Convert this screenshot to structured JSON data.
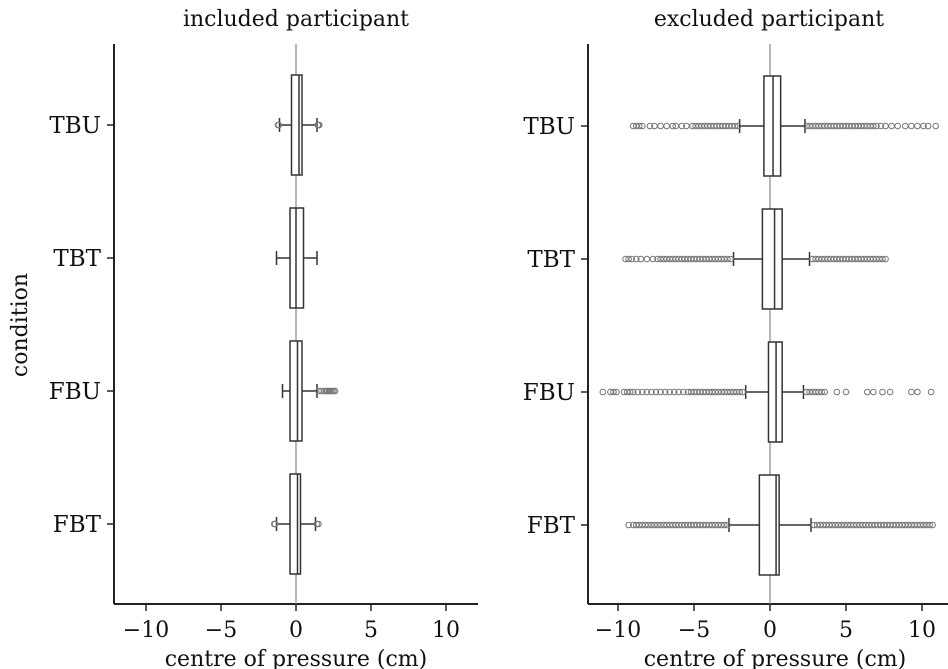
{
  "chart_data": [
    {
      "type": "box",
      "title": "included participant",
      "xlabel": "centre of pressure (cm)",
      "ylabel": "condition",
      "xlim": [
        -12.2,
        12.2
      ],
      "xticks": [
        -10,
        -5,
        0,
        5,
        10
      ],
      "xtick_labels": [
        "−10",
        "−5",
        "0",
        "5",
        "10"
      ],
      "categories": [
        "TBU",
        "TBT",
        "FBU",
        "FBT"
      ],
      "zero_line": true,
      "boxes": [
        {
          "category": "TBU",
          "whislo": -1.1,
          "q1": -0.3,
          "med": 0.2,
          "q3": 0.4,
          "whishi": 1.4,
          "fliers": [
            -1.2,
            -1.15,
            1.45,
            1.5,
            1.55
          ]
        },
        {
          "category": "TBT",
          "whislo": -1.3,
          "q1": -0.4,
          "med": 0.0,
          "q3": 0.5,
          "whishi": 1.4,
          "fliers": []
        },
        {
          "category": "FBU",
          "whislo": -0.9,
          "q1": -0.4,
          "med": 0.1,
          "q3": 0.4,
          "whishi": 1.4,
          "fliers": [
            1.5,
            1.7,
            1.9,
            2.0,
            2.1,
            2.2,
            2.3,
            2.4,
            2.5,
            2.6
          ]
        },
        {
          "category": "FBT",
          "whislo": -1.3,
          "q1": -0.4,
          "med": 0.1,
          "q3": 0.3,
          "whishi": 1.3,
          "fliers": [
            -1.45,
            -1.4,
            1.4,
            1.5
          ]
        }
      ]
    },
    {
      "type": "box",
      "title": "excluded participant",
      "xlabel": "centre of pressure (cm)",
      "ylabel": "",
      "xlim": [
        -12.2,
        11.5
      ],
      "xticks": [
        -10,
        -5,
        0,
        5,
        10
      ],
      "xtick_labels": [
        "−10",
        "−5",
        "0",
        "5",
        "10"
      ],
      "categories": [
        "TBU",
        "TBT",
        "FBU",
        "FBT"
      ],
      "zero_line": true,
      "boxes": [
        {
          "category": "TBU",
          "whislo": -2.0,
          "q1": -0.4,
          "med": 0.2,
          "q3": 0.7,
          "whishi": 2.3,
          "fliers": [
            -9.0,
            -8.8,
            -8.6,
            -8.4,
            -7.9,
            -7.6,
            -7.2,
            -6.8,
            -6.4,
            -6.2,
            -5.8,
            -5.5,
            -5.1,
            -4.9,
            -4.7,
            -4.5,
            -4.3,
            -4.1,
            -3.9,
            -3.7,
            -3.5,
            -3.3,
            -3.1,
            -2.9,
            -2.7,
            -2.5,
            -2.3,
            -2.1,
            2.4,
            2.6,
            2.8,
            3.0,
            3.2,
            3.4,
            3.6,
            3.8,
            4.0,
            4.2,
            4.4,
            4.6,
            4.8,
            5.0,
            5.2,
            5.4,
            5.6,
            5.8,
            6.0,
            6.2,
            6.4,
            6.6,
            6.8,
            7.0,
            7.3,
            7.6,
            8.0,
            8.4,
            8.9,
            9.3,
            9.7,
            10.1,
            10.4,
            10.9
          ]
        },
        {
          "category": "TBT",
          "whislo": -2.4,
          "q1": -0.5,
          "med": 0.3,
          "q3": 0.8,
          "whishi": 2.6,
          "fliers": [
            -9.5,
            -9.3,
            -9.1,
            -8.8,
            -8.5,
            -8.1,
            -7.7,
            -7.4,
            -7.2,
            -7.0,
            -6.8,
            -6.6,
            -6.4,
            -6.2,
            -6.0,
            -5.8,
            -5.6,
            -5.4,
            -5.2,
            -5.0,
            -4.8,
            -4.6,
            -4.4,
            -4.2,
            -4.0,
            -3.8,
            -3.6,
            -3.4,
            -3.2,
            -3.0,
            -2.8,
            -2.6,
            2.8,
            3.0,
            3.2,
            3.4,
            3.6,
            3.8,
            4.0,
            4.2,
            4.4,
            4.6,
            4.8,
            5.0,
            5.2,
            5.4,
            5.6,
            5.8,
            6.0,
            6.2,
            6.4,
            6.6,
            6.8,
            7.0,
            7.2,
            7.4,
            7.6
          ]
        },
        {
          "category": "FBU",
          "whislo": -1.6,
          "q1": -0.1,
          "med": 0.4,
          "q3": 0.8,
          "whishi": 2.2,
          "fliers": [
            -11.0,
            -10.5,
            -10.3,
            -10.1,
            -9.6,
            -9.4,
            -9.2,
            -9.0,
            -8.7,
            -8.4,
            -8.1,
            -7.8,
            -7.5,
            -7.2,
            -6.9,
            -6.6,
            -6.3,
            -6.0,
            -5.7,
            -5.4,
            -5.2,
            -5.0,
            -4.8,
            -4.6,
            -4.4,
            -4.2,
            -4.0,
            -3.8,
            -3.6,
            -3.4,
            -3.2,
            -3.0,
            -2.8,
            -2.6,
            -2.4,
            -2.2,
            -2.0,
            -1.8,
            2.4,
            2.6,
            2.8,
            3.0,
            3.2,
            3.4,
            3.6,
            4.4,
            5.0,
            6.4,
            6.8,
            7.4,
            7.9,
            9.3,
            9.7,
            10.6
          ]
        },
        {
          "category": "FBT",
          "whislo": -2.7,
          "q1": -0.7,
          "med": 0.4,
          "q3": 0.6,
          "whishi": 2.7,
          "fliers": [
            -9.3,
            -9.0,
            -8.8,
            -8.6,
            -8.4,
            -8.2,
            -8.0,
            -7.8,
            -7.6,
            -7.4,
            -7.2,
            -7.0,
            -6.8,
            -6.6,
            -6.4,
            -6.2,
            -6.0,
            -5.8,
            -5.6,
            -5.4,
            -5.2,
            -5.0,
            -4.8,
            -4.6,
            -4.4,
            -4.2,
            -4.0,
            -3.8,
            -3.6,
            -3.4,
            -3.2,
            -3.0,
            -2.8,
            2.9,
            3.1,
            3.3,
            3.5,
            3.7,
            3.9,
            4.1,
            4.3,
            4.5,
            4.7,
            4.9,
            5.1,
            5.3,
            5.5,
            5.7,
            5.9,
            6.1,
            6.3,
            6.5,
            6.7,
            6.9,
            7.1,
            7.3,
            7.5,
            7.7,
            7.9,
            8.1,
            8.3,
            8.5,
            8.7,
            8.9,
            9.1,
            9.3,
            9.5,
            9.7,
            9.9,
            10.1,
            10.3,
            10.5,
            10.7
          ]
        }
      ]
    }
  ]
}
